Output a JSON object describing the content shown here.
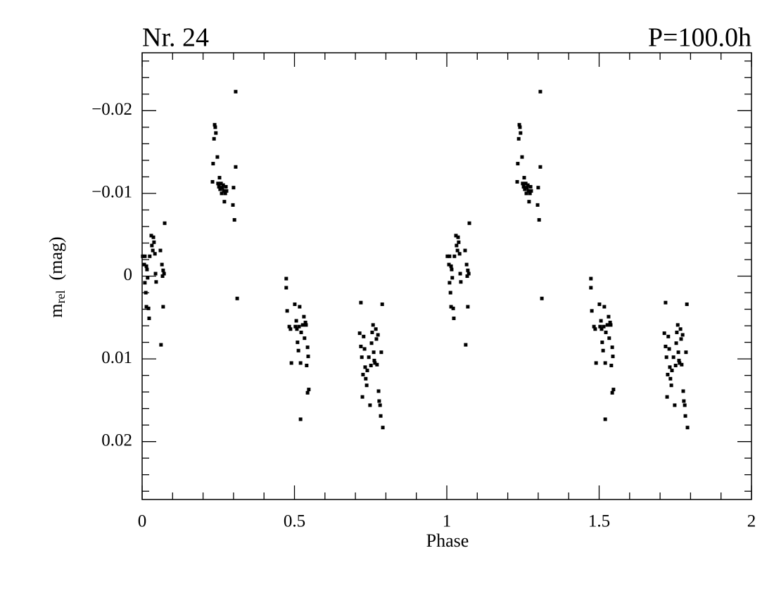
{
  "chart_data": {
    "type": "scatter",
    "title": "Nr. 24",
    "subtitle": "P=100.0h",
    "xlabel": "Phase",
    "ylabel": "m",
    "ylabel_sub": "rel",
    "ylabel_unit": "(mag)",
    "color": "#000000",
    "xlim": [
      0,
      2
    ],
    "ylim": [
      0.027,
      -0.027
    ],
    "xticks": [
      0,
      0.5,
      1,
      1.5,
      2
    ],
    "yticks": [
      {
        "value": -0.02,
        "label": "−0.02"
      },
      {
        "value": -0.01,
        "label": "−0.01"
      },
      0,
      0.01,
      0.02
    ],
    "xminorticks": [
      0.1,
      0.2,
      0.3,
      0.4,
      0.6,
      0.7,
      0.8,
      0.9,
      1.1,
      1.2,
      1.3,
      1.4,
      1.6,
      1.7,
      1.8,
      1.9
    ],
    "yminorticks": [
      -0.026,
      -0.024,
      -0.022,
      -0.018,
      -0.016,
      -0.014,
      -0.012,
      -0.008,
      -0.006,
      -0.004,
      -0.002,
      0.002,
      0.004,
      0.006,
      0.008,
      0.012,
      0.014,
      0.016,
      0.018,
      0.022,
      0.024,
      0.026
    ],
    "x": [
      0.002,
      0.007,
      0.009,
      0.012,
      0.014,
      0.009,
      0.014,
      0.016,
      0.018,
      0.021,
      0.023,
      0.025,
      0.03,
      0.032,
      0.035,
      0.037,
      0.039,
      0.042,
      0.044,
      0.046,
      0.06,
      0.062,
      0.065,
      0.067,
      0.069,
      0.072,
      0.074,
      0.069,
      0.231,
      0.233,
      0.236,
      0.238,
      0.24,
      0.242,
      0.247,
      0.249,
      0.252,
      0.254,
      0.256,
      0.259,
      0.261,
      0.263,
      0.266,
      0.268,
      0.27,
      0.273,
      0.275,
      0.277,
      0.298,
      0.3,
      0.303,
      0.307,
      0.307,
      0.312,
      0.473,
      0.473,
      0.476,
      0.483,
      0.487,
      0.49,
      0.501,
      0.503,
      0.506,
      0.508,
      0.51,
      0.513,
      0.515,
      0.517,
      0.52,
      0.522,
      0.527,
      0.531,
      0.533,
      0.536,
      0.538,
      0.54,
      0.543,
      0.543,
      0.545,
      0.547,
      0.52,
      0.718,
      0.714,
      0.718,
      0.721,
      0.723,
      0.725,
      0.727,
      0.73,
      0.732,
      0.734,
      0.737,
      0.739,
      0.744,
      0.748,
      0.751,
      0.753,
      0.755,
      0.758,
      0.76,
      0.762,
      0.764,
      0.767,
      0.769,
      0.771,
      0.774,
      0.776,
      0.778,
      0.781,
      0.783,
      0.788,
      0.785,
      0.79,
      1.002,
      1.007,
      1.009,
      1.012,
      1.014,
      1.009,
      1.014,
      1.016,
      1.018,
      1.021,
      1.023,
      1.025,
      1.03,
      1.032,
      1.035,
      1.037,
      1.039,
      1.042,
      1.044,
      1.046,
      1.06,
      1.062,
      1.065,
      1.067,
      1.069,
      1.072,
      1.074,
      1.069,
      1.231,
      1.233,
      1.236,
      1.238,
      1.24,
      1.242,
      1.247,
      1.249,
      1.252,
      1.254,
      1.256,
      1.259,
      1.261,
      1.263,
      1.266,
      1.268,
      1.27,
      1.273,
      1.275,
      1.277,
      1.298,
      1.3,
      1.303,
      1.307,
      1.307,
      1.312,
      1.473,
      1.473,
      1.476,
      1.483,
      1.487,
      1.49,
      1.501,
      1.503,
      1.506,
      1.508,
      1.51,
      1.513,
      1.515,
      1.517,
      1.52,
      1.522,
      1.527,
      1.531,
      1.533,
      1.536,
      1.538,
      1.54,
      1.543,
      1.543,
      1.545,
      1.547,
      1.52,
      1.718,
      1.714,
      1.718,
      1.721,
      1.723,
      1.725,
      1.727,
      1.73,
      1.732,
      1.734,
      1.737,
      1.739,
      1.744,
      1.748,
      1.751,
      1.753,
      1.755,
      1.758,
      1.76,
      1.762,
      1.764,
      1.767,
      1.769,
      1.771,
      1.774,
      1.776,
      1.778,
      1.781,
      1.783,
      1.788,
      1.785,
      1.79
    ],
    "values": [
      -0.0024,
      -0.0014,
      0.0008,
      0.002,
      0.0037,
      -0.0024,
      -0.0012,
      -0.0008,
      0.0002,
      0.0039,
      0.0051,
      -0.0024,
      -0.0049,
      -0.0037,
      -0.0031,
      -0.0047,
      -0.0041,
      -0.0027,
      -0.0003,
      0.0007,
      -0.0031,
      0.0083,
      -0.0014,
      0,
      0.0037,
      -0.0003,
      -0.0064,
      -0.0007,
      -0.0114,
      -0.0136,
      -0.0166,
      -0.0183,
      -0.018,
      -0.0173,
      -0.0144,
      -0.0112,
      -0.0108,
      -0.0119,
      -0.0105,
      -0.0112,
      -0.01,
      -0.0107,
      -0.011,
      -0.0103,
      -0.009,
      -0.01,
      -0.0108,
      -0.0103,
      -0.0086,
      -0.0107,
      -0.0068,
      -0.0132,
      -0.0223,
      0.0027,
      0.0003,
      0.0014,
      0.0042,
      0.0061,
      0.0064,
      0.0105,
      0.0034,
      0.0061,
      0.0054,
      0.0064,
      0.008,
      0.009,
      0.0061,
      0.0037,
      0.0105,
      0.0068,
      0.0059,
      0.0049,
      0.0075,
      0.0056,
      0.0059,
      0.0108,
      0.0086,
      0.0141,
      0.0097,
      0.0137,
      0.0173,
      0.0032,
      0.0069,
      0.0085,
      0.0098,
      0.0146,
      0.0119,
      0.0073,
      0.0088,
      0.011,
      0.0124,
      0.0132,
      0.0114,
      0.0098,
      0.0156,
      0.0108,
      0.0081,
      0.0068,
      0.0059,
      0.0092,
      0.0102,
      0.0105,
      0.0064,
      0.0076,
      0.0107,
      0.0071,
      0.0139,
      0.0151,
      0.0156,
      0.0169,
      0.0034,
      0.0092,
      0.0183,
      -0.0024,
      -0.0014,
      0.0008,
      0.002,
      0.0037,
      -0.0024,
      -0.0012,
      -0.0008,
      0.0002,
      0.0039,
      0.0051,
      -0.0024,
      -0.0049,
      -0.0037,
      -0.0031,
      -0.0047,
      -0.0041,
      -0.0027,
      -0.0003,
      0.0007,
      -0.0031,
      0.0083,
      -0.0014,
      0,
      0.0037,
      -0.0003,
      -0.0064,
      -0.0007,
      -0.0114,
      -0.0136,
      -0.0166,
      -0.0183,
      -0.018,
      -0.0173,
      -0.0144,
      -0.0112,
      -0.0108,
      -0.0119,
      -0.0105,
      -0.0112,
      -0.01,
      -0.0107,
      -0.011,
      -0.0103,
      -0.009,
      -0.01,
      -0.0108,
      -0.0103,
      -0.0086,
      -0.0107,
      -0.0068,
      -0.0132,
      -0.0223,
      0.0027,
      0.0003,
      0.0014,
      0.0042,
      0.0061,
      0.0064,
      0.0105,
      0.0034,
      0.0061,
      0.0054,
      0.0064,
      0.008,
      0.009,
      0.0061,
      0.0037,
      0.0105,
      0.0068,
      0.0059,
      0.0049,
      0.0075,
      0.0056,
      0.0059,
      0.0108,
      0.0086,
      0.0141,
      0.0097,
      0.0137,
      0.0173,
      0.0032,
      0.0069,
      0.0085,
      0.0098,
      0.0146,
      0.0119,
      0.0073,
      0.0088,
      0.011,
      0.0124,
      0.0132,
      0.0114,
      0.0098,
      0.0156,
      0.0108,
      0.0081,
      0.0068,
      0.0059,
      0.0092,
      0.0102,
      0.0105,
      0.0064,
      0.0076,
      0.0107,
      0.0071,
      0.0139,
      0.0151,
      0.0156,
      0.0169,
      0.0034,
      0.0092,
      0.0183
    ]
  }
}
